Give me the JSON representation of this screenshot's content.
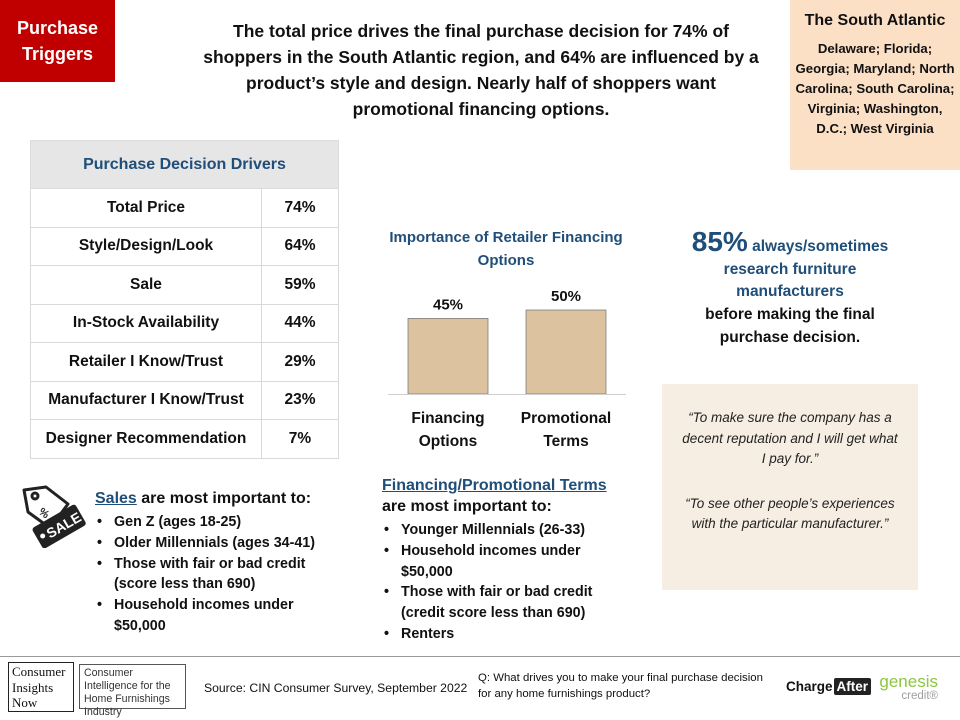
{
  "tag": {
    "line1": "Purchase",
    "line2": "Triggers"
  },
  "headline": "The total price drives the final purchase decision for 74% of shoppers in the South Atlantic region, and 64% are influenced by a product’s style and design. Nearly half of shoppers want promotional financing options.",
  "region": {
    "title": "The South Atlantic",
    "states": "Delaware; Florida; Georgia; Maryland; North Carolina; South Carolina; Virginia; Washington, D.C.; West Virginia"
  },
  "drivers_table": {
    "title": "Purchase Decision Drivers",
    "rows": [
      {
        "label": "Total Price",
        "value": "74%"
      },
      {
        "label": "Style/Design/Look",
        "value": "64%"
      },
      {
        "label": "Sale",
        "value": "59%"
      },
      {
        "label": "In-Stock Availability",
        "value": "44%"
      },
      {
        "label": "Retailer I Know/Trust",
        "value": "29%"
      },
      {
        "label": "Manufacturer I Know/Trust",
        "value": "23%"
      },
      {
        "label": "Designer Recommendation",
        "value": "7%"
      }
    ]
  },
  "chart_data": {
    "type": "bar",
    "title": "Importance of Retailer Financing Options",
    "categories": [
      "Financing Options",
      "Promotional Terms"
    ],
    "category_lines": [
      [
        "Financing",
        "Options"
      ],
      [
        "Promotional",
        "Terms"
      ]
    ],
    "values": [
      45,
      50
    ],
    "value_labels": [
      "45%",
      "50%"
    ],
    "ylim": [
      0,
      100
    ],
    "bar_color": "#dcc29f",
    "axis_color": "#cfcfcf"
  },
  "sales": {
    "icon": "sale-tag-icon",
    "title_underlined": "Sales",
    "title_rest": " are most important to:",
    "items": [
      "Gen Z (ages 18-25)",
      "Older Millennials  (ages 34-41)",
      "Those with fair or bad credit (score less than 690)",
      "Household incomes under $50,000"
    ]
  },
  "financing": {
    "title_underlined": "Financing/Promotional Terms",
    "title_rest": "are most important to:",
    "items": [
      "Younger Millennials (26-33)",
      "Household incomes under $50,000",
      "Those with fair or bad credit (credit score less than 690)",
      "Renters"
    ]
  },
  "stat": {
    "percent": "85%",
    "line1_rest": " always/sometimes",
    "line2": "research furniture",
    "line3": "manufacturers",
    "line4": "before making the final",
    "line5": "purchase decision."
  },
  "quotes": [
    "“To make sure the company has a decent reputation and I will get what I pay for.”",
    "“To see other people’s experiences with the particular manufacturer.”"
  ],
  "footer": {
    "cin_logo": [
      "Consumer",
      "Insights",
      "Now"
    ],
    "cin_tagline": "Consumer Intelligence for the Home Furnishings Industry",
    "source": "Source: CIN Consumer Survey, September  2022",
    "question": "Q: What drives you to make your final purchase decision for any home furnishings product?",
    "chargeafter_a": "Charge",
    "chargeafter_b": "After",
    "genesis_a": "genesis",
    "genesis_b": "credit",
    "genesis_mark": "®"
  },
  "colors": {
    "accent_red": "#c00000",
    "navy": "#1f4e79",
    "peach": "#fbe0c6",
    "quote_bg": "#f6ede3",
    "genesis_green": "#8dc63f"
  }
}
